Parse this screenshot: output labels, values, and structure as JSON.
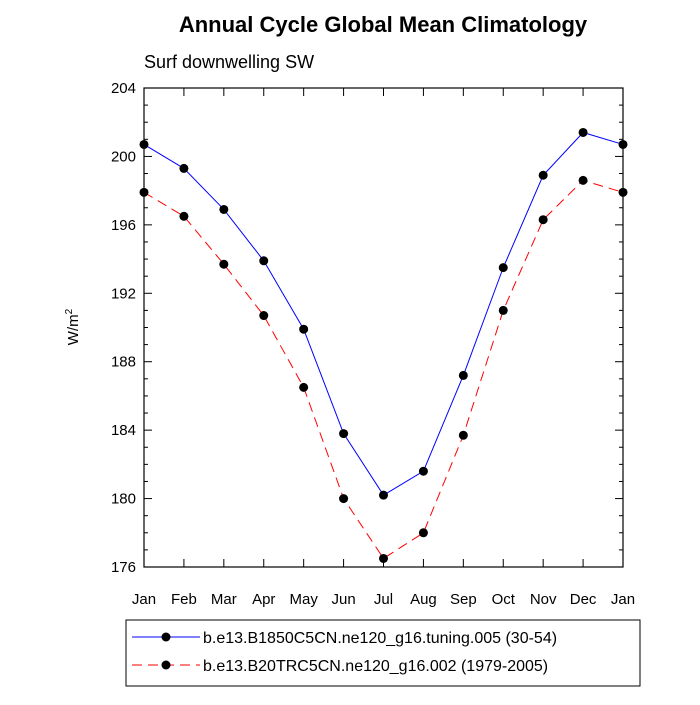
{
  "chart_data": {
    "type": "line",
    "title": "Annual Cycle Global Mean Climatology",
    "subtitle": "Surf downwelling SW",
    "xlabel": "",
    "ylabel": "W/m",
    "ylabel_superscript": "2",
    "categories": [
      "Jan",
      "Feb",
      "Mar",
      "Apr",
      "May",
      "Jun",
      "Jul",
      "Aug",
      "Sep",
      "Oct",
      "Nov",
      "Dec",
      "Jan"
    ],
    "ylim": [
      176,
      204
    ],
    "yticks": [
      176,
      180,
      184,
      188,
      192,
      196,
      200,
      204
    ],
    "legend_position": "bottom",
    "series": [
      {
        "name": "b.e13.B1850C5CN.ne120_g16.tuning.005 (30-54)",
        "color": "#0000ff",
        "dash": "solid",
        "values": [
          200.7,
          199.3,
          196.9,
          193.9,
          189.9,
          183.8,
          180.2,
          181.6,
          187.2,
          193.5,
          198.9,
          201.4,
          200.7
        ]
      },
      {
        "name": "b.e13.B20TRC5CN.ne120_g16.002 (1979-2005)",
        "color": "#ff0000",
        "dash": "dashed",
        "values": [
          197.9,
          196.5,
          193.7,
          190.7,
          186.5,
          180.0,
          176.5,
          178.0,
          183.7,
          191.0,
          196.3,
          198.6,
          197.9
        ]
      }
    ]
  }
}
